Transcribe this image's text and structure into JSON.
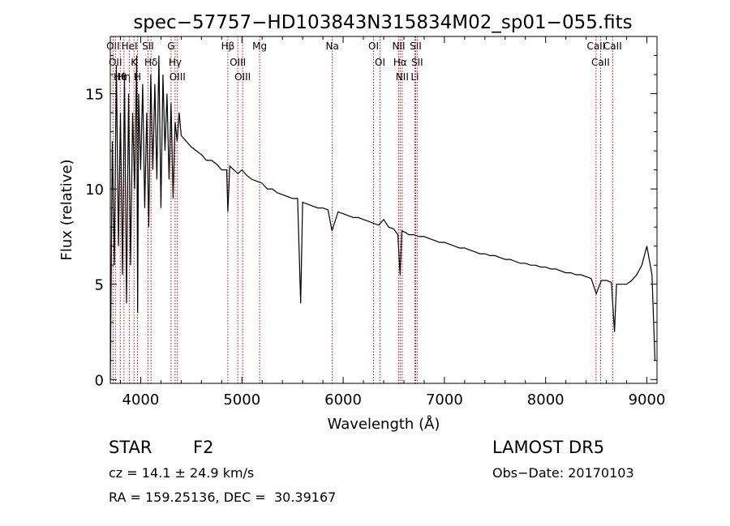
{
  "chart_data": {
    "type": "line",
    "title": "spec−57757−HD103843N315834M02_sp01−055.fits",
    "xlabel": "Wavelength (Å)",
    "ylabel": "Flux (relative)",
    "xlim": [
      3700,
      9100
    ],
    "ylim": [
      -0.2,
      18
    ],
    "xticks": [
      4000,
      5000,
      6000,
      7000,
      8000,
      9000
    ],
    "yticks": [
      0,
      5,
      10,
      15
    ],
    "grid": false,
    "series": [
      {
        "x": [
          3700,
          3720,
          3740,
          3760,
          3780,
          3800,
          3820,
          3840,
          3860,
          3880,
          3900,
          3920,
          3940,
          3960,
          3970,
          3980,
          4000,
          4020,
          4040,
          4060,
          4080,
          4100,
          4120,
          4140,
          4160,
          4180,
          4200,
          4220,
          4240,
          4260,
          4280,
          4300,
          4320,
          4340,
          4360,
          4380,
          4400,
          4450,
          4500,
          4550,
          4600,
          4650,
          4700,
          4750,
          4800,
          4850,
          4861,
          4880,
          4920,
          4960,
          5000,
          5050,
          5100,
          5150,
          5200,
          5250,
          5300,
          5350,
          5400,
          5450,
          5500,
          5550,
          5580,
          5600,
          5650,
          5700,
          5750,
          5800,
          5850,
          5890,
          5950,
          6000,
          6050,
          6100,
          6150,
          6200,
          6250,
          6300,
          6350,
          6400,
          6450,
          6500,
          6540,
          6563,
          6580,
          6620,
          6650,
          6700,
          6750,
          6800,
          6850,
          6900,
          6950,
          7000,
          7050,
          7100,
          7150,
          7200,
          7250,
          7300,
          7350,
          7400,
          7450,
          7500,
          7550,
          7600,
          7650,
          7700,
          7750,
          7800,
          7850,
          7900,
          7950,
          8000,
          8050,
          8100,
          8150,
          8200,
          8250,
          8300,
          8350,
          8400,
          8450,
          8500,
          8550,
          8600,
          8650,
          8680,
          8700,
          8750,
          8800,
          8850,
          8900,
          8950,
          9000,
          9050,
          9080
        ],
        "y": [
          0,
          12.5,
          6,
          16.5,
          7,
          14,
          5.5,
          16,
          4,
          15,
          6,
          14,
          10,
          17,
          3.5,
          15,
          11,
          15.5,
          9,
          14,
          8,
          16,
          11,
          15.5,
          10.5,
          17,
          9,
          16,
          12,
          15,
          10.5,
          14.5,
          9.5,
          13.5,
          12.5,
          14,
          12.8,
          12.5,
          12.2,
          12,
          11.8,
          11.5,
          11.5,
          11.3,
          11,
          11,
          8.8,
          11.2,
          11,
          10.8,
          11,
          10.7,
          10.5,
          10.4,
          10.3,
          10,
          10,
          9.8,
          9.7,
          9.6,
          9.5,
          9.5,
          4,
          9.3,
          9.2,
          9.1,
          9,
          9,
          8.9,
          7.8,
          8.8,
          8.7,
          8.6,
          8.5,
          8.5,
          8.4,
          8.3,
          8.2,
          8.1,
          8.4,
          8,
          7.9,
          7.6,
          5.5,
          7.8,
          7.7,
          7.6,
          7.6,
          7.5,
          7.5,
          7.4,
          7.3,
          7.2,
          7.2,
          7.1,
          7,
          6.9,
          6.9,
          6.8,
          6.7,
          6.6,
          6.6,
          6.5,
          6.5,
          6.4,
          6.3,
          6.3,
          6.2,
          6.1,
          6.1,
          6,
          6,
          5.9,
          5.9,
          5.8,
          5.8,
          5.7,
          5.6,
          5.6,
          5.5,
          5.5,
          5.4,
          5.3,
          4.5,
          5.2,
          5.2,
          5.1,
          2.5,
          5,
          5,
          5,
          5.2,
          5.5,
          6,
          7,
          5.5,
          1
        ]
      }
    ],
    "lines": [
      {
        "x": 3727,
        "label": "OII"
      },
      {
        "x": 3750,
        "label": "OII"
      },
      {
        "x": 3798,
        "label": "Hθ"
      },
      {
        "x": 3835,
        "label": "Hη"
      },
      {
        "x": 3889,
        "label": "HeI"
      },
      {
        "x": 3934,
        "label": "K"
      },
      {
        "x": 3969,
        "label": "H"
      },
      {
        "x": 4072,
        "label": "SII"
      },
      {
        "x": 4102,
        "label": "Hδ"
      },
      {
        "x": 4300,
        "label": "G"
      },
      {
        "x": 4340,
        "label": "Hγ"
      },
      {
        "x": 4363,
        "label": "OIII"
      },
      {
        "x": 4861,
        "label": "Hβ"
      },
      {
        "x": 4959,
        "label": "OIII"
      },
      {
        "x": 5007,
        "label": "OIII"
      },
      {
        "x": 5175,
        "label": "Mg"
      },
      {
        "x": 5893,
        "label": "Na"
      },
      {
        "x": 6300,
        "label": "OI"
      },
      {
        "x": 6364,
        "label": "OI"
      },
      {
        "x": 6548,
        "label": "NII"
      },
      {
        "x": 6563,
        "label": "Hα"
      },
      {
        "x": 6583,
        "label": "NII"
      },
      {
        "x": 6708,
        "label": "Li"
      },
      {
        "x": 6716,
        "label": "SII"
      },
      {
        "x": 6731,
        "label": "SII"
      },
      {
        "x": 8498,
        "label": "CaII"
      },
      {
        "x": 8542,
        "label": "CaII"
      },
      {
        "x": 8662,
        "label": "CaII"
      }
    ],
    "colors": {
      "spectrum": "#000000",
      "lines": "#cc0000",
      "axes": "#000000"
    }
  },
  "info": {
    "object_type": "STAR",
    "subclass": "F2",
    "survey": "LAMOST DR5",
    "cz": "cz = 14.1 ± 24.9 km/s",
    "obs_date": "Obs−Date: 20170103",
    "coords": "RA = 159.25136, DEC =  30.39167"
  }
}
